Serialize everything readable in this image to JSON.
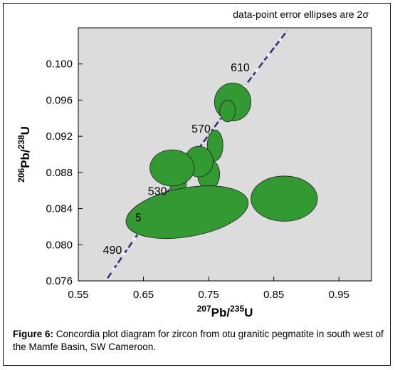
{
  "chart_data": {
    "type": "scatter",
    "subtype": "concordia",
    "annotation": "data-point error ellipses are 2σ",
    "xlabel": {
      "iso": "207",
      "el": "Pb",
      "sep": "/",
      "iso2": "235",
      "el2": "U"
    },
    "ylabel": {
      "iso": "206",
      "el": "Pb",
      "sep": "/",
      "iso2": "238",
      "el2": "U"
    },
    "xlim": [
      0.55,
      1.0
    ],
    "ylim": [
      0.076,
      0.104
    ],
    "x_ticks": [
      "0.55",
      "0.65",
      "0.75",
      "0.85",
      "0.95"
    ],
    "y_ticks": [
      "0.076",
      "0.080",
      "0.084",
      "0.088",
      "0.092",
      "0.096",
      "0.100"
    ],
    "concordia_ages": [
      {
        "label": "490",
        "x": 0.617,
        "y": 0.079
      },
      {
        "label": "5",
        "x": 0.647,
        "y": 0.0826
      },
      {
        "label": "530",
        "x": 0.686,
        "y": 0.0855
      },
      {
        "label": "570",
        "x": 0.753,
        "y": 0.0924
      },
      {
        "label": "610",
        "x": 0.813,
        "y": 0.0992
      }
    ],
    "ellipses": [
      {
        "cx": 0.787,
        "cy": 0.0958,
        "rx": 0.028,
        "ry": 0.0021,
        "rot": 0
      },
      {
        "cx": 0.779,
        "cy": 0.0948,
        "rx": 0.012,
        "ry": 0.0012,
        "rot": 0
      },
      {
        "cx": 0.76,
        "cy": 0.091,
        "rx": 0.012,
        "ry": 0.0017,
        "rot": 0
      },
      {
        "cx": 0.75,
        "cy": 0.0878,
        "rx": 0.017,
        "ry": 0.0017,
        "rot": 0
      },
      {
        "cx": 0.703,
        "cy": 0.087,
        "rx": 0.013,
        "ry": 0.0018,
        "rot": 0
      },
      {
        "cx": 0.735,
        "cy": 0.0892,
        "rx": 0.022,
        "ry": 0.0017,
        "rot": 0
      },
      {
        "cx": 0.694,
        "cy": 0.0885,
        "rx": 0.034,
        "ry": 0.002,
        "rot": 0
      },
      {
        "cx": 0.717,
        "cy": 0.0836,
        "rx": 0.095,
        "ry": 0.0027,
        "rot": -10
      },
      {
        "cx": 0.866,
        "cy": 0.0851,
        "rx": 0.051,
        "ry": 0.0025,
        "rot": 0
      }
    ],
    "colors": {
      "ellipse": "#339933",
      "concordia": "#2e2e82",
      "plot_bg": "#dcdcdc"
    },
    "grid": false
  },
  "caption": {
    "label": "Figure 6:",
    "text": " Concordia plot diagram for zircon from otu granitic pegmatite in south west of the Mamfe Basin, SW Cameroon."
  }
}
